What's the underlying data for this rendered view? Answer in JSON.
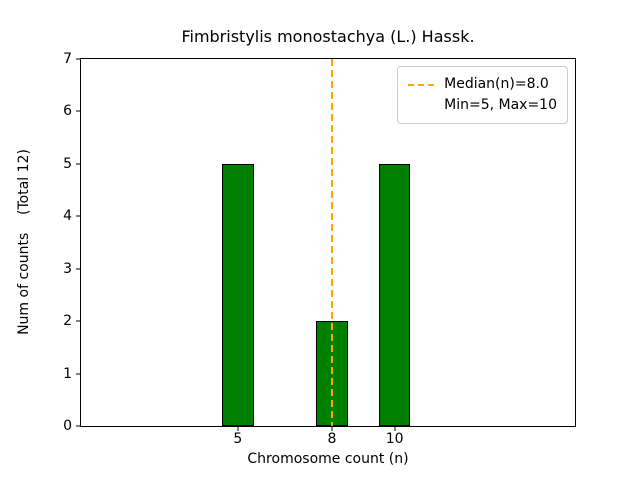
{
  "title": "Fimbristylis monostachya (L.) Hassk.",
  "xlabel": "Chromosome count (n)",
  "ylabel": "Num of counts    (Total 12)",
  "legend": {
    "median_label": "Median(n)=8.0",
    "minmax_label": "Min=5, Max=10"
  },
  "colors": {
    "bar": "#008000",
    "bar_edge": "#000000",
    "median_line": "#FFA500",
    "legend_border": "#cccccc"
  },
  "chart_data": {
    "type": "bar",
    "title": "Fimbristylis monostachya (L.) Hassk.",
    "xlabel": "Chromosome count (n)",
    "ylabel": "Num of counts    (Total 12)",
    "x": [
      5,
      8,
      10
    ],
    "values": [
      5,
      2,
      5
    ],
    "total_counts": 12,
    "bar_width": 1.0,
    "median": 8.0,
    "min": 5,
    "max": 10,
    "xlim": [
      0,
      15.75
    ],
    "ylim": [
      0,
      7
    ],
    "xticks": [
      5,
      8,
      10
    ],
    "yticks": [
      0,
      1,
      2,
      3,
      4,
      5,
      6,
      7
    ],
    "grid": false,
    "legend_position": "upper right"
  }
}
